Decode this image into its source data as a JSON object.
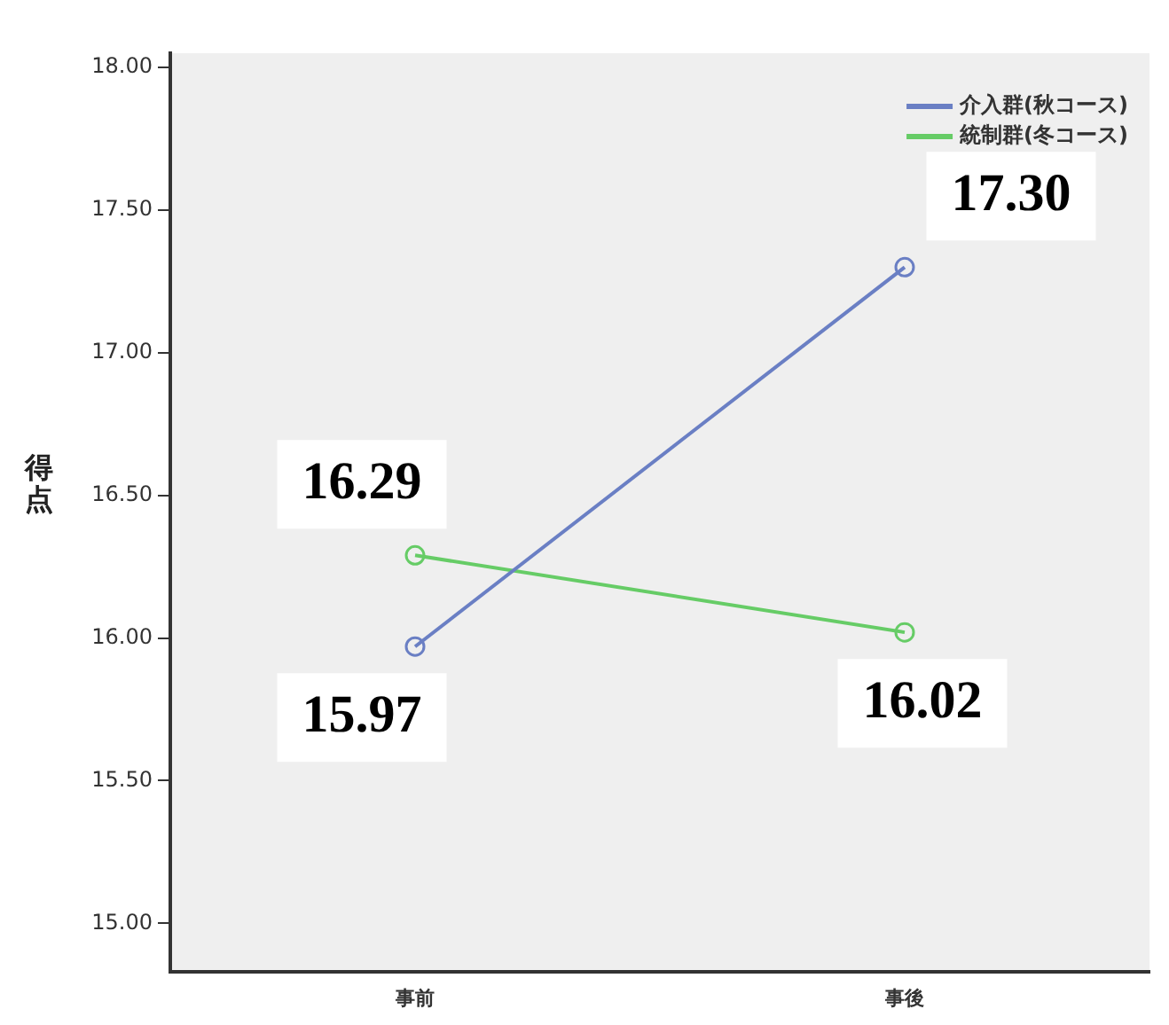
{
  "chart_data": {
    "type": "line",
    "ylabel": "得点",
    "categories": [
      "事前",
      "事後"
    ],
    "series": [
      {
        "name": "介入群(秋コース)",
        "color": "#6a7fc4",
        "values": [
          15.97,
          17.3
        ],
        "value_labels": [
          "15.97",
          "17.30"
        ]
      },
      {
        "name": "統制群(冬コース)",
        "color": "#66cc66",
        "values": [
          16.29,
          16.02
        ],
        "value_labels": [
          "16.29",
          "16.02"
        ]
      }
    ],
    "ylim": [
      14.83,
      18.05
    ],
    "yticks": [
      {
        "value": 15,
        "label": "15.00"
      },
      {
        "value": 15.5,
        "label": "15.50"
      },
      {
        "value": 16,
        "label": "16.00"
      },
      {
        "value": 16.5,
        "label": "16.50"
      },
      {
        "value": 17,
        "label": "17.00"
      },
      {
        "value": 17.5,
        "label": "17.50"
      },
      {
        "value": 18,
        "label": "18.00"
      }
    ],
    "grid": false,
    "legend": "top right",
    "marker": "circle",
    "line_style": "solid"
  }
}
